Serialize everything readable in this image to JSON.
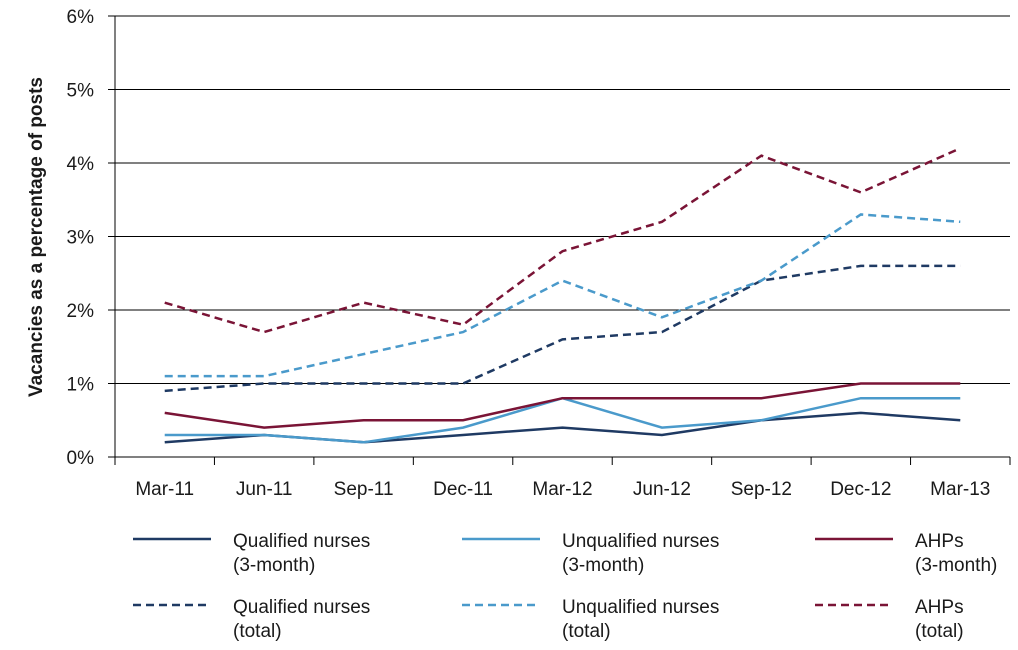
{
  "chart_data": {
    "type": "line",
    "y_label": "Vacancies as a percentage of posts",
    "categories": [
      "Mar-11",
      "Jun-11",
      "Sep-11",
      "Dec-11",
      "Mar-12",
      "Jun-12",
      "Sep-12",
      "Dec-12",
      "Mar-13"
    ],
    "series": [
      {
        "name": "Qualified nurses\n(3-month)",
        "color": "#1f3a63",
        "style": "solid",
        "values": [
          0.2,
          0.3,
          0.2,
          0.3,
          0.4,
          0.3,
          0.5,
          0.6,
          0.5
        ]
      },
      {
        "name": "Unqualified nurses\n(3-month)",
        "color": "#4a9acb",
        "style": "solid",
        "values": [
          0.3,
          0.3,
          0.2,
          0.4,
          0.8,
          0.4,
          0.5,
          0.8,
          0.8
        ]
      },
      {
        "name": "AHPs\n(3-month)",
        "color": "#7a1436",
        "style": "solid",
        "values": [
          0.6,
          0.4,
          0.5,
          0.5,
          0.8,
          0.8,
          0.8,
          1.0,
          1.0
        ]
      },
      {
        "name": "Qualified nurses\n(total)",
        "color": "#1f3a63",
        "style": "dashed",
        "values": [
          0.9,
          1.0,
          1.0,
          1.0,
          1.6,
          1.7,
          2.4,
          2.6,
          2.6
        ]
      },
      {
        "name": "Unqualified nurses\n(total)",
        "color": "#4a9acb",
        "style": "dashed",
        "values": [
          1.1,
          1.1,
          1.4,
          1.7,
          2.4,
          1.9,
          2.4,
          3.3,
          3.2
        ]
      },
      {
        "name": "AHPs\n(total)",
        "color": "#7a1436",
        "style": "dashed",
        "values": [
          2.1,
          1.7,
          2.1,
          1.8,
          2.8,
          3.2,
          4.1,
          3.6,
          4.2
        ]
      }
    ],
    "ylim": [
      0,
      6
    ],
    "yticks": [
      {
        "value": 0,
        "label": "0%"
      },
      {
        "value": 1,
        "label": "1%"
      },
      {
        "value": 2,
        "label": "2%"
      },
      {
        "value": 3,
        "label": "3%"
      },
      {
        "value": 4,
        "label": "4%"
      },
      {
        "value": 5,
        "label": "5%"
      },
      {
        "value": 6,
        "label": "6%"
      }
    ],
    "grid": true
  }
}
